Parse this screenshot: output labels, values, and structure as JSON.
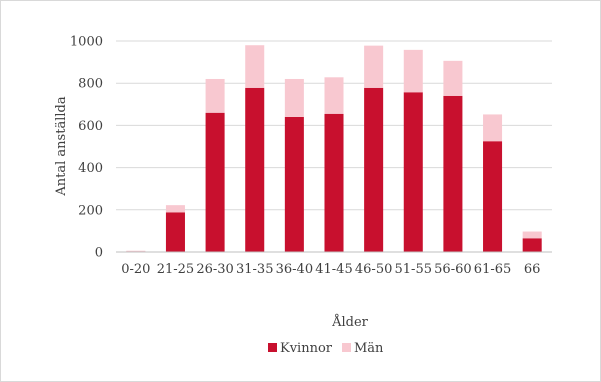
{
  "chart_data": {
    "type": "bar",
    "stacked": true,
    "title": "",
    "xlabel": "Ålder",
    "ylabel": "Antal anställda",
    "ylim": [
      0,
      1000
    ],
    "yticks": [
      0,
      200,
      400,
      600,
      800,
      1000
    ],
    "grid": true,
    "legend_position": "bottom",
    "categories": [
      "0-20",
      "21-25",
      "26-30",
      "31-35",
      "36-40",
      "41-45",
      "46-50",
      "51-55",
      "56-60",
      "61-65",
      "66"
    ],
    "series": [
      {
        "name": "Kvinnor",
        "color": "#c8102e",
        "values": [
          3,
          188,
          660,
          778,
          640,
          655,
          778,
          757,
          740,
          525,
          65
        ]
      },
      {
        "name": "Män",
        "color": "#f8c8d0",
        "values": [
          3,
          34,
          160,
          202,
          180,
          173,
          200,
          201,
          166,
          127,
          32
        ]
      }
    ]
  }
}
